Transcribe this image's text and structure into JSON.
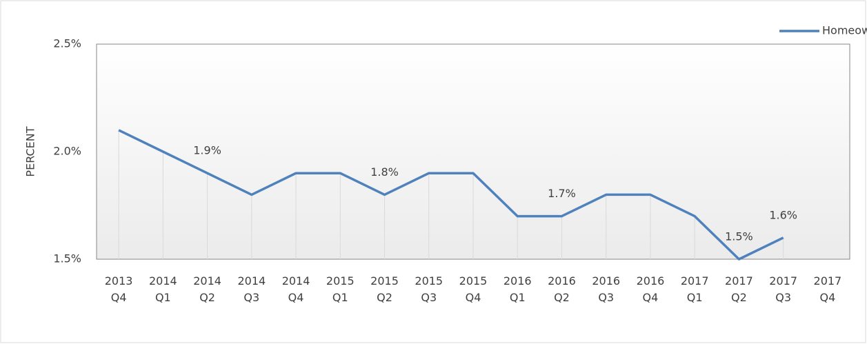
{
  "chart_data": {
    "type": "line",
    "y_label": "PERCENT",
    "categories": [
      "2013 Q4",
      "2014 Q1",
      "2014 Q2",
      "2014 Q3",
      "2014 Q4",
      "2015 Q1",
      "2015 Q2",
      "2015 Q3",
      "2015 Q4",
      "2016 Q1",
      "2016 Q2",
      "2016 Q3",
      "2016 Q4",
      "2017 Q1",
      "2017 Q2",
      "2017 Q3",
      "2017 Q4"
    ],
    "series": [
      {
        "name": "Homeownership Vacancy Rate",
        "color": "#4f81bd",
        "values": [
          2.1,
          2.0,
          1.9,
          1.8,
          1.9,
          1.9,
          1.8,
          1.9,
          1.9,
          1.7,
          1.7,
          1.8,
          1.8,
          1.7,
          1.5,
          1.6,
          null
        ],
        "value_labels": [
          null,
          null,
          "1.9%",
          null,
          null,
          null,
          "1.8%",
          null,
          null,
          null,
          "1.7%",
          null,
          null,
          null,
          "1.5%",
          "1.6%",
          null
        ]
      }
    ],
    "ylim": [
      1.5,
      2.5
    ],
    "yticks": [
      {
        "value": 1.5,
        "label": "1.5%"
      },
      {
        "value": 2.0,
        "label": "2.0%"
      },
      {
        "value": 2.5,
        "label": "2.5%"
      }
    ],
    "grid": false,
    "drop_lines": true,
    "legend": "top-right"
  }
}
